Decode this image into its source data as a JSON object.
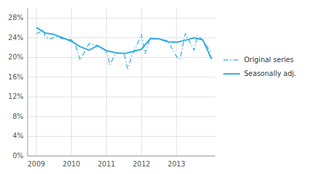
{
  "chart_data": {
    "type": "line",
    "xlim": [
      2008.75,
      2014.1
    ],
    "xticks": [
      2009,
      2010,
      2011,
      2012,
      2013
    ],
    "ylim": [
      0,
      0.3
    ],
    "yticks": [
      {
        "value": 0,
        "label": "0%"
      },
      {
        "value": 0.04,
        "label": "4%"
      },
      {
        "value": 0.08,
        "label": "8%"
      },
      {
        "value": 0.12,
        "label": "12%"
      },
      {
        "value": 0.16,
        "label": "16%"
      },
      {
        "value": 0.2,
        "label": "20%"
      },
      {
        "value": 0.24,
        "label": "24%"
      },
      {
        "value": 0.28,
        "label": "28%"
      }
    ],
    "grid": true,
    "legend": "right",
    "series": [
      {
        "name": "Original series",
        "color": "#29abe2",
        "line_style": "dash-dot",
        "x": [
          2009.0,
          2009.1,
          2009.2,
          2009.25,
          2009.35,
          2009.5,
          2009.6,
          2009.75,
          2010.0,
          2010.1,
          2010.25,
          2010.5,
          2010.75,
          2011.0,
          2011.1,
          2011.25,
          2011.5,
          2011.6,
          2011.75,
          2012.0,
          2012.1,
          2012.25,
          2012.5,
          2012.75,
          2013.0,
          2013.1,
          2013.25,
          2013.5,
          2013.6,
          2013.75,
          2014.0
        ],
        "values": [
          0.248,
          0.252,
          0.256,
          0.242,
          0.238,
          0.24,
          0.242,
          0.238,
          0.236,
          0.228,
          0.195,
          0.228,
          0.224,
          0.213,
          0.185,
          0.208,
          0.21,
          0.178,
          0.207,
          0.247,
          0.208,
          0.24,
          0.238,
          0.234,
          0.202,
          0.197,
          0.249,
          0.215,
          0.245,
          0.235,
          0.209
        ]
      },
      {
        "name": "Seasonally adj.",
        "color": "#29abe2",
        "line_style": "solid",
        "x": [
          2009.0,
          2009.25,
          2009.5,
          2009.75,
          2010.0,
          2010.25,
          2010.5,
          2010.75,
          2011.0,
          2011.25,
          2011.5,
          2011.75,
          2012.0,
          2012.25,
          2012.5,
          2012.75,
          2013.0,
          2013.25,
          2013.5,
          2013.75,
          2014.0
        ],
        "values": [
          0.261,
          0.25,
          0.247,
          0.24,
          0.233,
          0.222,
          0.215,
          0.224,
          0.214,
          0.21,
          0.208,
          0.212,
          0.217,
          0.238,
          0.238,
          0.232,
          0.231,
          0.235,
          0.24,
          0.236,
          0.197
        ]
      }
    ]
  }
}
